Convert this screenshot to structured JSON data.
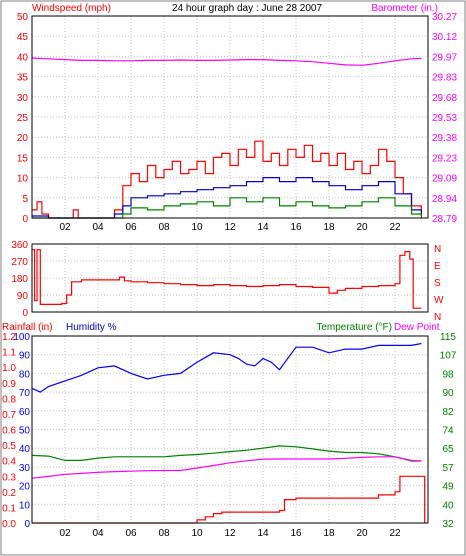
{
  "title": "24 hour graph day : June 28 2007",
  "colors": {
    "background": "#ffffff",
    "plot_bg": "#ffffff",
    "border": "#000000",
    "grid": "#c0c0c0",
    "wind": "#ff0000",
    "gust_avg": "#0000c0",
    "wind_low": "#008000",
    "barometer": "#ff00ff",
    "direction": "#ff0000",
    "humidity": "#0000ff",
    "temperature": "#008000",
    "dew_point": "#ff00ff",
    "rainfall": "#ff0000"
  },
  "chart_data": [
    {
      "type": "line",
      "panel": "wind-barometer",
      "left_axis_label": "Windspeed (mph)",
      "right_axis_label": "Barometer (in.)",
      "x_ticks": [
        "02",
        "04",
        "06",
        "08",
        "10",
        "12",
        "14",
        "16",
        "18",
        "20",
        "22"
      ],
      "x_hours": [
        2,
        4,
        6,
        8,
        10,
        12,
        14,
        16,
        18,
        20,
        22
      ],
      "left_ticks": [
        "0",
        "5",
        "10",
        "15",
        "20",
        "25",
        "30",
        "35",
        "40",
        "45",
        "50"
      ],
      "left_range": [
        0,
        50
      ],
      "right_ticks": [
        "28.79",
        "28.94",
        "29.09",
        "29.23",
        "29.38",
        "29.53",
        "29.68",
        "29.83",
        "29.97",
        "30.12",
        "30.27"
      ],
      "series": [
        {
          "key": "barometer",
          "points": [
            [
              0,
              39.6
            ],
            [
              1,
              39.4
            ],
            [
              2,
              39.2
            ],
            [
              3,
              39.0
            ],
            [
              4,
              39.0
            ],
            [
              5,
              38.9
            ],
            [
              6,
              38.9
            ],
            [
              7,
              39.0
            ],
            [
              8,
              39.0
            ],
            [
              9,
              39.1
            ],
            [
              10,
              39.0
            ],
            [
              11,
              39.0
            ],
            [
              12,
              39.1
            ],
            [
              13,
              39.2
            ],
            [
              14,
              39.2
            ],
            [
              15,
              39.0
            ],
            [
              16,
              38.9
            ],
            [
              17,
              38.7
            ],
            [
              18,
              38.3
            ],
            [
              19,
              37.9
            ],
            [
              20,
              37.8
            ],
            [
              21,
              38.3
            ],
            [
              22,
              38.9
            ],
            [
              23,
              39.4
            ],
            [
              23.6,
              39.5
            ]
          ]
        },
        {
          "key": "wind",
          "points": [
            [
              0,
              2
            ],
            [
              0.3,
              4
            ],
            [
              0.6,
              1
            ],
            [
              1,
              0
            ],
            [
              2,
              0
            ],
            [
              2.5,
              2
            ],
            [
              2.8,
              0
            ],
            [
              4,
              0
            ],
            [
              5,
              2
            ],
            [
              5.5,
              8
            ],
            [
              6,
              11
            ],
            [
              6.5,
              9
            ],
            [
              7,
              13
            ],
            [
              7.5,
              10
            ],
            [
              8,
              12
            ],
            [
              8.5,
              14
            ],
            [
              9,
              11
            ],
            [
              9.5,
              12
            ],
            [
              10,
              14
            ],
            [
              10.5,
              11
            ],
            [
              11,
              15
            ],
            [
              11.5,
              16
            ],
            [
              12,
              13
            ],
            [
              12.5,
              17
            ],
            [
              13,
              15
            ],
            [
              13.5,
              19
            ],
            [
              14,
              14
            ],
            [
              14.5,
              16
            ],
            [
              15,
              13
            ],
            [
              15.5,
              17
            ],
            [
              16,
              15
            ],
            [
              16.5,
              18
            ],
            [
              17,
              14
            ],
            [
              17.5,
              16
            ],
            [
              18,
              13
            ],
            [
              18.5,
              16
            ],
            [
              19,
              12
            ],
            [
              19.5,
              14
            ],
            [
              20,
              11
            ],
            [
              20.5,
              13
            ],
            [
              21,
              17
            ],
            [
              21.5,
              14
            ],
            [
              22,
              10
            ],
            [
              22.5,
              6
            ],
            [
              23,
              3
            ],
            [
              23.6,
              1
            ]
          ]
        },
        {
          "key": "gust_avg",
          "points": [
            [
              0,
              0.5
            ],
            [
              1,
              0
            ],
            [
              4,
              0
            ],
            [
              5,
              1
            ],
            [
              5.5,
              3
            ],
            [
              6,
              5
            ],
            [
              7,
              5.5
            ],
            [
              8,
              6
            ],
            [
              9,
              6.5
            ],
            [
              10,
              7
            ],
            [
              11,
              7.5
            ],
            [
              12,
              8
            ],
            [
              13,
              9
            ],
            [
              14,
              10
            ],
            [
              15,
              9
            ],
            [
              16,
              10
            ],
            [
              17,
              9
            ],
            [
              18,
              8
            ],
            [
              19,
              7
            ],
            [
              20,
              8
            ],
            [
              21,
              9
            ],
            [
              22,
              6
            ],
            [
              23,
              2
            ],
            [
              23.6,
              0.5
            ]
          ]
        },
        {
          "key": "wind_low",
          "points": [
            [
              0,
              0
            ],
            [
              5,
              0
            ],
            [
              5.5,
              1
            ],
            [
              6,
              2.5
            ],
            [
              7,
              2
            ],
            [
              8,
              3
            ],
            [
              9,
              3.5
            ],
            [
              10,
              4
            ],
            [
              11,
              3
            ],
            [
              12,
              5
            ],
            [
              13,
              4
            ],
            [
              14,
              5
            ],
            [
              15,
              3
            ],
            [
              16,
              4
            ],
            [
              17,
              3
            ],
            [
              18,
              2.5
            ],
            [
              19,
              3
            ],
            [
              20,
              4
            ],
            [
              21,
              5
            ],
            [
              22,
              3
            ],
            [
              23,
              1
            ],
            [
              23.6,
              0
            ]
          ]
        }
      ]
    },
    {
      "type": "line",
      "panel": "wind-direction",
      "left_ticks": [
        "0",
        "90",
        "180",
        "270",
        "360"
      ],
      "left_range": [
        0,
        360
      ],
      "right_ticks": [
        "N",
        "W",
        "S",
        "E",
        "N"
      ],
      "series": [
        {
          "key": "direction",
          "points": [
            [
              0,
              330
            ],
            [
              0.15,
              60
            ],
            [
              0.3,
              330
            ],
            [
              0.5,
              40
            ],
            [
              1,
              40
            ],
            [
              1.8,
              45
            ],
            [
              2.1,
              90
            ],
            [
              2.4,
              160
            ],
            [
              3,
              170
            ],
            [
              4,
              170
            ],
            [
              5,
              170
            ],
            [
              5.3,
              185
            ],
            [
              5.6,
              165
            ],
            [
              6,
              160
            ],
            [
              7,
              155
            ],
            [
              8,
              150
            ],
            [
              9,
              145
            ],
            [
              10,
              140
            ],
            [
              11,
              145
            ],
            [
              12,
              140
            ],
            [
              13,
              135
            ],
            [
              14,
              140
            ],
            [
              15,
              145
            ],
            [
              16,
              135
            ],
            [
              17,
              130
            ],
            [
              18,
              100
            ],
            [
              18.5,
              115
            ],
            [
              19,
              125
            ],
            [
              20,
              135
            ],
            [
              21,
              140
            ],
            [
              22,
              150
            ],
            [
              22.3,
              300
            ],
            [
              22.6,
              320
            ],
            [
              22.9,
              280
            ],
            [
              23.1,
              20
            ],
            [
              23.6,
              20
            ]
          ]
        }
      ]
    },
    {
      "type": "line",
      "panel": "rain-humidity-temperature",
      "rain_label": "Rainfall (in)",
      "humidity_label": "Humidity %",
      "temperature_label": "Temperature (°F)",
      "dew_point_label": "Dew Point",
      "rain_ticks": [
        "0.0",
        "0.1",
        "0.2",
        "0.3",
        "0.4",
        "0.5",
        "0.6",
        "0.7",
        "0.8",
        "0.9",
        "1.0",
        "1.1",
        "1.2"
      ],
      "rain_range": [
        0,
        1.2
      ],
      "humidity_ticks": [
        "0",
        "10",
        "20",
        "30",
        "40",
        "50",
        "60",
        "70",
        "80",
        "90",
        "100"
      ],
      "humidity_range": [
        0,
        100
      ],
      "temperature_ticks": [
        "32",
        "40",
        "49",
        "57",
        "65",
        "74",
        "82",
        "90",
        "98",
        "107",
        "115"
      ],
      "temperature_range": [
        32,
        115
      ],
      "series": [
        {
          "key": "humidity",
          "points": [
            [
              0,
              72
            ],
            [
              0.5,
              70
            ],
            [
              1,
              73
            ],
            [
              2,
              76
            ],
            [
              3,
              79
            ],
            [
              4,
              83
            ],
            [
              5,
              84
            ],
            [
              6,
              80
            ],
            [
              7,
              77
            ],
            [
              8,
              79
            ],
            [
              9,
              80
            ],
            [
              10,
              86
            ],
            [
              11,
              91
            ],
            [
              12,
              90
            ],
            [
              12.5,
              88
            ],
            [
              13,
              85
            ],
            [
              13.5,
              84
            ],
            [
              14,
              88
            ],
            [
              14.5,
              86
            ],
            [
              15,
              82
            ],
            [
              16,
              94
            ],
            [
              17,
              94
            ],
            [
              18,
              91
            ],
            [
              19,
              93
            ],
            [
              20,
              93
            ],
            [
              21,
              95
            ],
            [
              22,
              95
            ],
            [
              23,
              95
            ],
            [
              23.6,
              96
            ]
          ]
        },
        {
          "key": "temperature",
          "points": [
            [
              0,
              62.0
            ],
            [
              1,
              61.7
            ],
            [
              2,
              59.8
            ],
            [
              3,
              59.8
            ],
            [
              4,
              60.8
            ],
            [
              5,
              61.4
            ],
            [
              6,
              61.4
            ],
            [
              7,
              61.4
            ],
            [
              8,
              61.4
            ],
            [
              9,
              62.0
            ],
            [
              10,
              62.4
            ],
            [
              11,
              63.0
            ],
            [
              12,
              63.7
            ],
            [
              13,
              64.3
            ],
            [
              14,
              65.2
            ],
            [
              15,
              66.2
            ],
            [
              16,
              65.8
            ],
            [
              17,
              64.9
            ],
            [
              18,
              63.9
            ],
            [
              19,
              63.3
            ],
            [
              20,
              63.3
            ],
            [
              21,
              62.7
            ],
            [
              22,
              61.4
            ],
            [
              23,
              59.5
            ],
            [
              23.6,
              59.5
            ]
          ]
        },
        {
          "key": "dew_point",
          "points": [
            [
              0,
              51.9
            ],
            [
              1,
              52.7
            ],
            [
              2,
              53.6
            ],
            [
              3,
              54.0
            ],
            [
              4,
              54.5
            ],
            [
              5,
              54.8
            ],
            [
              6,
              55.0
            ],
            [
              7,
              55.2
            ],
            [
              8,
              55.3
            ],
            [
              9,
              55.3
            ],
            [
              10,
              56.4
            ],
            [
              11,
              57.5
            ],
            [
              12,
              58.7
            ],
            [
              13,
              59.6
            ],
            [
              14,
              60.3
            ],
            [
              15,
              60.4
            ],
            [
              16,
              60.4
            ],
            [
              17,
              60.4
            ],
            [
              18,
              60.4
            ],
            [
              19,
              60.7
            ],
            [
              20,
              61.1
            ],
            [
              21,
              61.4
            ],
            [
              22,
              61.4
            ],
            [
              23,
              59.8
            ],
            [
              23.6,
              59.5
            ]
          ]
        },
        {
          "key": "rainfall",
          "points": [
            [
              0,
              0.0
            ],
            [
              9.9,
              0.0
            ],
            [
              10,
              0.02
            ],
            [
              10.5,
              0.04
            ],
            [
              11,
              0.06
            ],
            [
              11.5,
              0.07
            ],
            [
              14,
              0.07
            ],
            [
              15,
              0.08
            ],
            [
              15.3,
              0.15
            ],
            [
              16,
              0.16
            ],
            [
              17,
              0.16
            ],
            [
              20,
              0.16
            ],
            [
              21,
              0.18
            ],
            [
              22,
              0.2
            ],
            [
              22.3,
              0.3
            ],
            [
              23,
              0.3
            ],
            [
              23.6,
              0.3
            ],
            [
              23.8,
              0.0
            ]
          ]
        }
      ]
    }
  ]
}
